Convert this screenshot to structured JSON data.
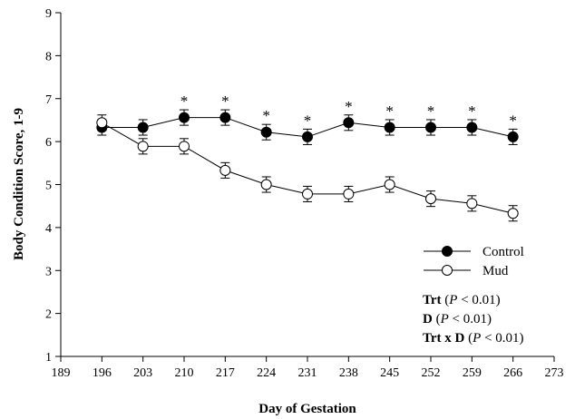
{
  "chart_data": {
    "type": "line",
    "xlabel": "Day of Gestation",
    "ylabel": "Body Condition Score, 1-9",
    "xlim": [
      189,
      273
    ],
    "ylim": [
      1,
      9
    ],
    "x_ticks": [
      "189",
      "196",
      "203",
      "210",
      "217",
      "224",
      "231",
      "238",
      "245",
      "252",
      "259",
      "266",
      "273"
    ],
    "y_ticks": [
      "1",
      "2",
      "3",
      "4",
      "5",
      "6",
      "7",
      "8",
      "9"
    ],
    "grid": false,
    "legend_position": "bottom-right",
    "x": [
      196,
      203,
      210,
      217,
      224,
      231,
      238,
      245,
      252,
      259,
      266
    ],
    "series": [
      {
        "name": "Control",
        "marker": "filled-circle",
        "color": "#000000",
        "values": [
          6.33,
          6.33,
          6.56,
          6.56,
          6.22,
          6.11,
          6.44,
          6.33,
          6.33,
          6.33,
          6.11
        ],
        "error": [
          0.18,
          0.18,
          0.18,
          0.18,
          0.18,
          0.18,
          0.18,
          0.18,
          0.18,
          0.18,
          0.18
        ]
      },
      {
        "name": "Mud",
        "marker": "open-circle",
        "color": "#000000",
        "values": [
          6.44,
          5.89,
          5.89,
          5.33,
          5.0,
          4.78,
          4.78,
          5.0,
          4.67,
          4.56,
          4.33
        ],
        "error": [
          0.18,
          0.18,
          0.18,
          0.18,
          0.18,
          0.18,
          0.18,
          0.18,
          0.18,
          0.18,
          0.18
        ]
      }
    ],
    "significance_marker": "*",
    "significant_x": [
      210,
      217,
      224,
      231,
      238,
      245,
      252,
      259,
      266
    ],
    "stats": [
      {
        "term": "Trt",
        "p": "P",
        "rest": " < 0.01)"
      },
      {
        "term": "D",
        "p": "P",
        "rest": " < 0.01)"
      },
      {
        "term": "Trt x D",
        "p": "P",
        "rest": " < 0.01)"
      }
    ]
  }
}
